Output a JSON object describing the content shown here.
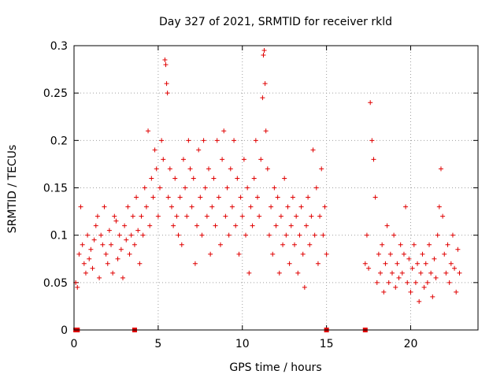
{
  "chart_data": {
    "type": "scatter",
    "title": "Day 327 of 2021, SRMTID for receiver rkld",
    "xlabel": "GPS time / hours",
    "ylabel": "SRMTID / TECUs",
    "xlim": [
      0,
      24
    ],
    "ylim": [
      0,
      0.3
    ],
    "x_ticks": [
      0,
      5,
      10,
      15,
      20
    ],
    "y_ticks": [
      0,
      0.05,
      0.1,
      0.15,
      0.2,
      0.25,
      0.3
    ],
    "x_tick_labels": [
      "0",
      "5",
      "10",
      "15",
      "20"
    ],
    "y_tick_labels": [
      "0",
      "0.05",
      "0.1",
      "0.15",
      "0.2",
      "0.25",
      "0.3"
    ],
    "grid": true,
    "marker": "+",
    "color": "#e00000",
    "series": [
      {
        "name": "SRMTID",
        "points": [
          [
            0.1,
            0.05
          ],
          [
            0.2,
            0.045
          ],
          [
            0.3,
            0.08
          ],
          [
            0.4,
            0.13
          ],
          [
            0.5,
            0.09
          ],
          [
            0.6,
            0.07
          ],
          [
            0.7,
            0.06
          ],
          [
            0.8,
            0.1
          ],
          [
            0.9,
            0.075
          ],
          [
            1.0,
            0.085
          ],
          [
            1.1,
            0.065
          ],
          [
            1.2,
            0.095
          ],
          [
            1.3,
            0.11
          ],
          [
            1.4,
            0.12
          ],
          [
            1.5,
            0.055
          ],
          [
            1.6,
            0.1
          ],
          [
            1.7,
            0.09
          ],
          [
            1.8,
            0.13
          ],
          [
            1.9,
            0.08
          ],
          [
            2.0,
            0.07
          ],
          [
            2.1,
            0.105
          ],
          [
            2.2,
            0.09
          ],
          [
            2.3,
            0.06
          ],
          [
            2.4,
            0.12
          ],
          [
            2.5,
            0.115
          ],
          [
            2.6,
            0.075
          ],
          [
            2.7,
            0.1
          ],
          [
            2.8,
            0.085
          ],
          [
            2.9,
            0.055
          ],
          [
            3.0,
            0.11
          ],
          [
            3.1,
            0.095
          ],
          [
            3.2,
            0.13
          ],
          [
            3.3,
            0.08
          ],
          [
            3.4,
            0.1
          ],
          [
            3.5,
            0.12
          ],
          [
            3.6,
            0.09
          ],
          [
            3.7,
            0.14
          ],
          [
            3.8,
            0.105
          ],
          [
            3.9,
            0.07
          ],
          [
            4.0,
            0.12
          ],
          [
            4.1,
            0.1
          ],
          [
            4.2,
            0.15
          ],
          [
            4.3,
            0.13
          ],
          [
            4.4,
            0.21
          ],
          [
            4.5,
            0.11
          ],
          [
            4.6,
            0.16
          ],
          [
            4.7,
            0.14
          ],
          [
            4.8,
            0.19
          ],
          [
            4.9,
            0.17
          ],
          [
            5.0,
            0.12
          ],
          [
            5.1,
            0.15
          ],
          [
            5.2,
            0.2
          ],
          [
            5.3,
            0.18
          ],
          [
            5.4,
            0.285
          ],
          [
            5.45,
            0.28
          ],
          [
            5.5,
            0.26
          ],
          [
            5.55,
            0.25
          ],
          [
            5.6,
            0.14
          ],
          [
            5.7,
            0.17
          ],
          [
            5.8,
            0.13
          ],
          [
            5.9,
            0.11
          ],
          [
            6.0,
            0.16
          ],
          [
            6.1,
            0.12
          ],
          [
            6.2,
            0.1
          ],
          [
            6.3,
            0.14
          ],
          [
            6.4,
            0.09
          ],
          [
            6.5,
            0.18
          ],
          [
            6.6,
            0.15
          ],
          [
            6.7,
            0.12
          ],
          [
            6.8,
            0.2
          ],
          [
            6.9,
            0.17
          ],
          [
            7.0,
            0.13
          ],
          [
            7.1,
            0.16
          ],
          [
            7.2,
            0.07
          ],
          [
            7.3,
            0.11
          ],
          [
            7.4,
            0.19
          ],
          [
            7.5,
            0.14
          ],
          [
            7.6,
            0.1
          ],
          [
            7.7,
            0.2
          ],
          [
            7.8,
            0.15
          ],
          [
            7.9,
            0.12
          ],
          [
            8.0,
            0.17
          ],
          [
            8.1,
            0.08
          ],
          [
            8.2,
            0.13
          ],
          [
            8.3,
            0.16
          ],
          [
            8.4,
            0.11
          ],
          [
            8.5,
            0.2
          ],
          [
            8.6,
            0.14
          ],
          [
            8.7,
            0.09
          ],
          [
            8.8,
            0.18
          ],
          [
            8.9,
            0.21
          ],
          [
            9.0,
            0.12
          ],
          [
            9.1,
            0.15
          ],
          [
            9.2,
            0.1
          ],
          [
            9.3,
            0.17
          ],
          [
            9.4,
            0.13
          ],
          [
            9.5,
            0.2
          ],
          [
            9.6,
            0.11
          ],
          [
            9.7,
            0.16
          ],
          [
            9.8,
            0.08
          ],
          [
            9.9,
            0.14
          ],
          [
            10.0,
            0.12
          ],
          [
            10.1,
            0.18
          ],
          [
            10.2,
            0.1
          ],
          [
            10.3,
            0.15
          ],
          [
            10.4,
            0.06
          ],
          [
            10.5,
            0.13
          ],
          [
            10.6,
            0.11
          ],
          [
            10.7,
            0.16
          ],
          [
            10.8,
            0.2
          ],
          [
            10.9,
            0.14
          ],
          [
            11.0,
            0.12
          ],
          [
            11.1,
            0.18
          ],
          [
            11.2,
            0.245
          ],
          [
            11.25,
            0.29
          ],
          [
            11.3,
            0.295
          ],
          [
            11.35,
            0.26
          ],
          [
            11.4,
            0.21
          ],
          [
            11.5,
            0.17
          ],
          [
            11.6,
            0.1
          ],
          [
            11.7,
            0.13
          ],
          [
            11.8,
            0.08
          ],
          [
            11.9,
            0.15
          ],
          [
            12.0,
            0.11
          ],
          [
            12.1,
            0.14
          ],
          [
            12.2,
            0.06
          ],
          [
            12.3,
            0.12
          ],
          [
            12.4,
            0.09
          ],
          [
            12.5,
            0.16
          ],
          [
            12.6,
            0.1
          ],
          [
            12.7,
            0.13
          ],
          [
            12.8,
            0.07
          ],
          [
            12.9,
            0.11
          ],
          [
            13.0,
            0.14
          ],
          [
            13.1,
            0.09
          ],
          [
            13.2,
            0.12
          ],
          [
            13.3,
            0.06
          ],
          [
            13.4,
            0.1
          ],
          [
            13.5,
            0.13
          ],
          [
            13.6,
            0.08
          ],
          [
            13.7,
            0.045
          ],
          [
            13.8,
            0.11
          ],
          [
            13.9,
            0.14
          ],
          [
            14.0,
            0.09
          ],
          [
            14.1,
            0.12
          ],
          [
            14.2,
            0.19
          ],
          [
            14.3,
            0.1
          ],
          [
            14.4,
            0.15
          ],
          [
            14.5,
            0.07
          ],
          [
            14.6,
            0.12
          ],
          [
            14.7,
            0.17
          ],
          [
            14.8,
            0.1
          ],
          [
            14.9,
            0.13
          ],
          [
            15.0,
            0.08
          ],
          [
            17.3,
            0.07
          ],
          [
            17.4,
            0.1
          ],
          [
            17.5,
            0.065
          ],
          [
            17.6,
            0.24
          ],
          [
            17.7,
            0.2
          ],
          [
            17.8,
            0.18
          ],
          [
            17.9,
            0.14
          ],
          [
            18.0,
            0.05
          ],
          [
            18.1,
            0.08
          ],
          [
            18.2,
            0.06
          ],
          [
            18.3,
            0.09
          ],
          [
            18.4,
            0.04
          ],
          [
            18.5,
            0.07
          ],
          [
            18.6,
            0.11
          ],
          [
            18.7,
            0.05
          ],
          [
            18.8,
            0.08
          ],
          [
            18.9,
            0.06
          ],
          [
            19.0,
            0.1
          ],
          [
            19.1,
            0.045
          ],
          [
            19.2,
            0.07
          ],
          [
            19.3,
            0.055
          ],
          [
            19.4,
            0.09
          ],
          [
            19.5,
            0.06
          ],
          [
            19.6,
            0.08
          ],
          [
            19.7,
            0.13
          ],
          [
            19.8,
            0.05
          ],
          [
            19.9,
            0.075
          ],
          [
            20.0,
            0.04
          ],
          [
            20.1,
            0.065
          ],
          [
            20.2,
            0.09
          ],
          [
            20.3,
            0.05
          ],
          [
            20.4,
            0.07
          ],
          [
            20.5,
            0.03
          ],
          [
            20.6,
            0.06
          ],
          [
            20.7,
            0.08
          ],
          [
            20.8,
            0.045
          ],
          [
            20.9,
            0.07
          ],
          [
            21.0,
            0.05
          ],
          [
            21.1,
            0.09
          ],
          [
            21.2,
            0.06
          ],
          [
            21.3,
            0.035
          ],
          [
            21.4,
            0.075
          ],
          [
            21.5,
            0.055
          ],
          [
            21.6,
            0.1
          ],
          [
            21.7,
            0.13
          ],
          [
            21.8,
            0.17
          ],
          [
            21.9,
            0.12
          ],
          [
            22.0,
            0.08
          ],
          [
            22.1,
            0.06
          ],
          [
            22.2,
            0.09
          ],
          [
            22.3,
            0.05
          ],
          [
            22.4,
            0.07
          ],
          [
            22.5,
            0.1
          ],
          [
            22.6,
            0.065
          ],
          [
            22.7,
            0.04
          ],
          [
            22.8,
            0.085
          ],
          [
            22.9,
            0.06
          ]
        ]
      }
    ],
    "zero_markers_x": [
      0.1,
      0.2,
      3.6,
      15.0,
      17.3
    ]
  }
}
